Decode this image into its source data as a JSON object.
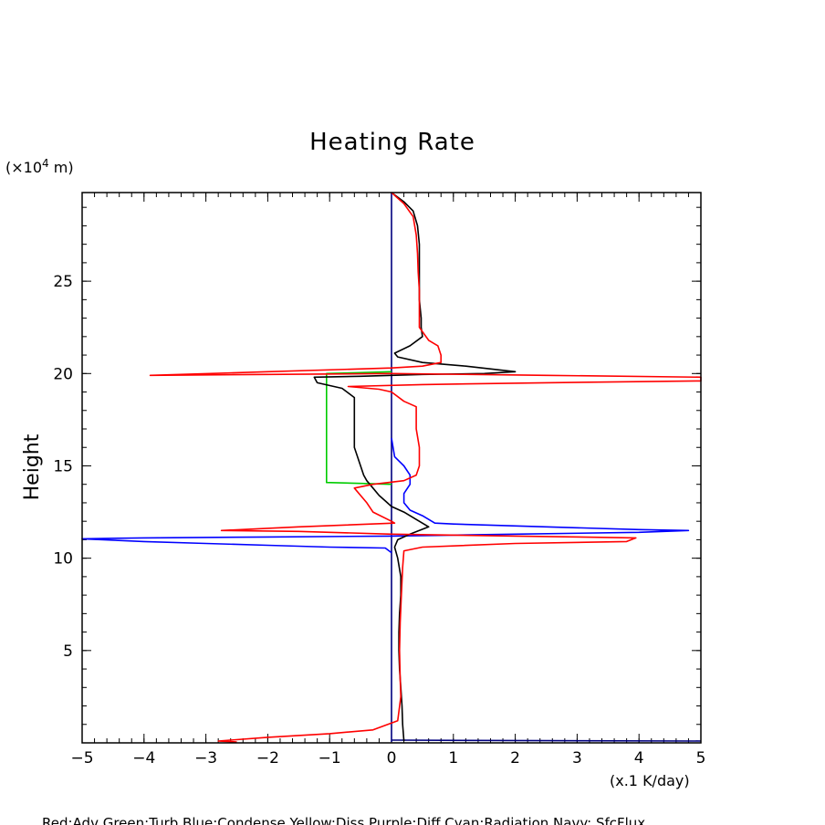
{
  "chart_data": {
    "type": "line",
    "title": "Heating Rate",
    "xlabel": "(x.1 K/day)",
    "ylabel": "Height",
    "y_unit_prefix": "(×10",
    "y_unit_exp": "4",
    "y_unit_suffix": " m)",
    "xlim": [
      -5,
      5
    ],
    "ylim": [
      0,
      29.8
    ],
    "xticks": [
      -5,
      -4,
      -3,
      -2,
      -1,
      0,
      1,
      2,
      3,
      4,
      5
    ],
    "xtick_labels": [
      "−5",
      "−4",
      "−3",
      "−2",
      "−1",
      "0",
      "1",
      "2",
      "3",
      "4",
      "5"
    ],
    "yticks": [
      5,
      10,
      15,
      20,
      25
    ],
    "ytick_labels": [
      "5",
      "10",
      "15",
      "20",
      "25"
    ],
    "legend": "Red:Adv  Green:Turb  Blue:Condense  Yellow:Diss  Purple:Diff  Cyan:Radiation  Navy: SfcFlux",
    "series": [
      {
        "name": "Navy",
        "color": "#00007f",
        "points": [
          [
            0,
            0.05
          ],
          [
            0,
            29.8
          ],
          [
            0,
            0.15
          ],
          [
            0.1,
            0.15
          ],
          [
            2.5,
            0.12
          ],
          [
            5,
            0.1
          ]
        ]
      },
      {
        "name": "Green",
        "color": "#00cc00",
        "points": [
          [
            0,
            20.1
          ],
          [
            -0.5,
            20.05
          ],
          [
            -1.05,
            20.0
          ],
          [
            -1.05,
            14.1
          ],
          [
            -0.5,
            14.05
          ],
          [
            0,
            14.0
          ]
        ]
      },
      {
        "name": "Blue",
        "color": "#0000ff",
        "points": [
          [
            0,
            16.5
          ],
          [
            0.05,
            15.5
          ],
          [
            0.2,
            15.0
          ],
          [
            0.3,
            14.5
          ],
          [
            0.3,
            14.0
          ],
          [
            0.2,
            13.5
          ],
          [
            0.2,
            13.0
          ],
          [
            0.3,
            12.6
          ],
          [
            0.5,
            12.3
          ],
          [
            0.7,
            11.9
          ],
          [
            1.0,
            11.85
          ],
          [
            2.5,
            11.7
          ],
          [
            4.0,
            11.55
          ],
          [
            4.8,
            11.5
          ],
          [
            4.0,
            11.4
          ],
          [
            2.0,
            11.3
          ],
          [
            0,
            11.2
          ],
          [
            -2.0,
            11.15
          ],
          [
            -4.0,
            11.1
          ],
          [
            -5.0,
            11.05
          ],
          [
            -4.0,
            10.9
          ],
          [
            -3.0,
            10.8
          ],
          [
            -2.0,
            10.7
          ],
          [
            -1.0,
            10.6
          ],
          [
            -0.1,
            10.55
          ],
          [
            0,
            10.3
          ]
        ]
      },
      {
        "name": "Black",
        "color": "#000000",
        "points": [
          [
            0,
            29.8
          ],
          [
            0.2,
            29.3
          ],
          [
            0.35,
            28.8
          ],
          [
            0.42,
            28.0
          ],
          [
            0.45,
            27.0
          ],
          [
            0.45,
            26.0
          ],
          [
            0.45,
            25.0
          ],
          [
            0.45,
            24.0
          ],
          [
            0.48,
            23.0
          ],
          [
            0.48,
            22.5
          ],
          [
            0.5,
            22.0
          ],
          [
            0.3,
            21.5
          ],
          [
            0.05,
            21.1
          ],
          [
            0.1,
            20.9
          ],
          [
            0.5,
            20.6
          ],
          [
            1.2,
            20.4
          ],
          [
            2.0,
            20.1
          ],
          [
            1.5,
            20.0
          ],
          [
            0.5,
            19.95
          ],
          [
            -0.5,
            19.85
          ],
          [
            -1.25,
            19.8
          ],
          [
            -1.2,
            19.5
          ],
          [
            -0.8,
            19.2
          ],
          [
            -0.6,
            18.7
          ],
          [
            -0.6,
            18.0
          ],
          [
            -0.6,
            17.0
          ],
          [
            -0.6,
            16.0
          ],
          [
            -0.55,
            15.5
          ],
          [
            -0.5,
            15.0
          ],
          [
            -0.45,
            14.5
          ],
          [
            -0.4,
            14.2
          ],
          [
            -0.3,
            13.8
          ],
          [
            -0.2,
            13.4
          ],
          [
            -0.1,
            13.1
          ],
          [
            0,
            12.8
          ],
          [
            0.2,
            12.5
          ],
          [
            0.4,
            12.1
          ],
          [
            0.6,
            11.7
          ],
          [
            0.3,
            11.3
          ],
          [
            0.1,
            11.0
          ],
          [
            0.05,
            10.6
          ],
          [
            0.1,
            10.0
          ],
          [
            0.15,
            9.0
          ],
          [
            0.15,
            8.0
          ],
          [
            0.13,
            7.0
          ],
          [
            0.12,
            6.0
          ],
          [
            0.12,
            5.0
          ],
          [
            0.13,
            4.0
          ],
          [
            0.15,
            3.0
          ],
          [
            0.17,
            2.0
          ],
          [
            0.18,
            1.0
          ],
          [
            0.2,
            0.1
          ]
        ]
      },
      {
        "name": "Red",
        "color": "#ff0000",
        "points": [
          [
            0,
            29.8
          ],
          [
            0.2,
            29.2
          ],
          [
            0.35,
            28.5
          ],
          [
            0.4,
            27.5
          ],
          [
            0.42,
            26.5
          ],
          [
            0.43,
            25.5
          ],
          [
            0.45,
            24.5
          ],
          [
            0.45,
            23.5
          ],
          [
            0.45,
            22.5
          ],
          [
            0.6,
            21.8
          ],
          [
            0.75,
            21.5
          ],
          [
            0.8,
            21.0
          ],
          [
            0.8,
            20.6
          ],
          [
            0.5,
            20.4
          ],
          [
            0,
            20.3
          ],
          [
            -2.0,
            20.1
          ],
          [
            -3.9,
            19.9
          ],
          [
            -2.0,
            19.95
          ],
          [
            0,
            20.0
          ],
          [
            2.5,
            19.9
          ],
          [
            5.0,
            19.8
          ],
          [
            5.0,
            19.6
          ],
          [
            2.5,
            19.5
          ],
          [
            0.5,
            19.4
          ],
          [
            -0.7,
            19.3
          ],
          [
            -0.2,
            19.15
          ],
          [
            0,
            19.0
          ],
          [
            0.2,
            18.5
          ],
          [
            0.4,
            18.2
          ],
          [
            0.4,
            17.0
          ],
          [
            0.45,
            16.0
          ],
          [
            0.45,
            15.0
          ],
          [
            0.4,
            14.5
          ],
          [
            0.2,
            14.2
          ],
          [
            -0.3,
            14.0
          ],
          [
            -0.6,
            13.8
          ],
          [
            -0.5,
            13.4
          ],
          [
            -0.4,
            13.0
          ],
          [
            -0.3,
            12.5
          ],
          [
            0,
            12.0
          ],
          [
            0.05,
            11.9
          ],
          [
            -1.5,
            11.7
          ],
          [
            -2.75,
            11.5
          ],
          [
            -1.5,
            11.45
          ],
          [
            0,
            11.3
          ],
          [
            2.0,
            11.2
          ],
          [
            3.95,
            11.1
          ],
          [
            3.8,
            10.9
          ],
          [
            2.0,
            10.8
          ],
          [
            0.5,
            10.6
          ],
          [
            0.2,
            10.4
          ],
          [
            0.18,
            9.5
          ],
          [
            0.16,
            8.0
          ],
          [
            0.14,
            6.5
          ],
          [
            0.13,
            5.0
          ],
          [
            0.14,
            3.5
          ],
          [
            0.15,
            2.5
          ],
          [
            0.1,
            1.2
          ],
          [
            -0.3,
            0.7
          ],
          [
            -1.0,
            0.5
          ],
          [
            -2.0,
            0.3
          ],
          [
            -2.8,
            0.1
          ],
          [
            -2.5,
            0.05
          ]
        ]
      }
    ]
  }
}
